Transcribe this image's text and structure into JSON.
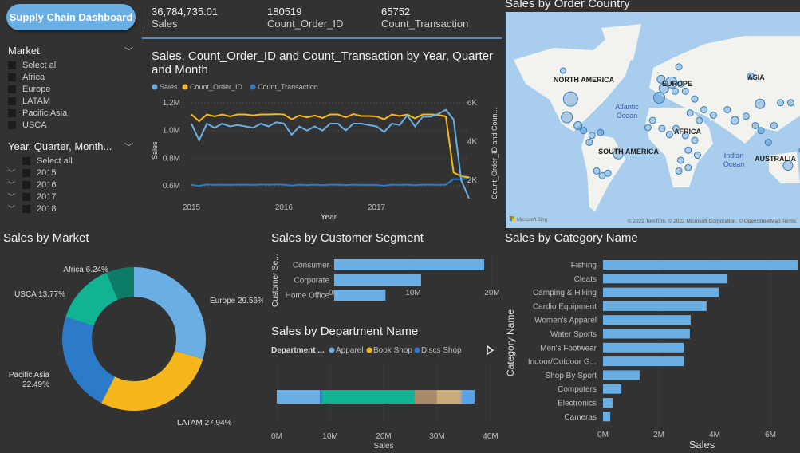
{
  "header": {
    "button": "Supply Chain Dashboard",
    "kpis": [
      {
        "value": "36,784,735.01",
        "label": "Sales"
      },
      {
        "value": "180519",
        "label": "Count_Order_ID"
      },
      {
        "value": "65752",
        "label": "Count_Transaction"
      }
    ]
  },
  "slicers": [
    {
      "title": "Market",
      "items": [
        "Select all",
        "Africa",
        "Europe",
        "LATAM",
        "Pacific Asia",
        "USCA"
      ]
    },
    {
      "title": "Year, Quarter, Month...",
      "items": [
        "Select all",
        "2015",
        "2016",
        "2017",
        "2018"
      ]
    }
  ],
  "colors": {
    "sales": "#6aafe3",
    "order": "#f5b71b",
    "trans": "#2b7bc8",
    "bar": "#6aafe3",
    "bg": "#323232"
  },
  "chart_data": [
    {
      "type": "line",
      "title": "Sales, Count_Order_ID and Count_Transaction by Year, Quarter and Month",
      "xlabel": "Year",
      "ylabel": "Sales",
      "y2label": "Count_Order_ID and Coun...",
      "x_ticks": [
        "2015",
        "2016",
        "2017"
      ],
      "y_ticks": [
        "1.2M",
        "1.0M",
        "0.8M",
        "0.6M"
      ],
      "y2_ticks": [
        "6K",
        "4K",
        "2K"
      ],
      "ylim": [
        0.5,
        1.2
      ],
      "y2lim": [
        1.6,
        6
      ],
      "legend_position": "top-left",
      "grid": true,
      "series": [
        {
          "name": "Sales",
          "axis": "left",
          "unit": "M",
          "values": [
            1.05,
            0.93,
            1.05,
            1.02,
            1.05,
            1.03,
            1.04,
            1.03,
            1.02,
            1.05,
            1.03,
            1.06,
            1.05,
            0.97,
            1.03,
            1.0,
            1.03,
            1.0,
            1.05,
            1.05,
            1.0,
            1.05,
            1.05,
            1.04,
            1.03,
            0.99,
            1.05,
            1.04,
            1.11,
            1.03,
            1.1,
            1.1,
            1.12,
            1.15,
            1.08,
            0.64,
            0.51
          ]
        },
        {
          "name": "Count_Order_ID",
          "axis": "right",
          "unit": "K",
          "values": [
            5.4,
            5.05,
            5.4,
            5.3,
            5.4,
            5.3,
            5.4,
            5.4,
            5.35,
            5.4,
            5.4,
            5.42,
            5.4,
            5.15,
            5.35,
            5.25,
            5.35,
            5.22,
            5.4,
            5.4,
            5.25,
            5.42,
            5.32,
            5.32,
            5.3,
            5.15,
            5.4,
            5.32,
            5.4,
            5.2,
            5.4,
            5.4,
            5.38,
            5.3,
            2.4,
            2.2,
            2.15
          ]
        },
        {
          "name": "Count_Transaction",
          "axis": "right",
          "unit": "K",
          "values": [
            1.76,
            1.7,
            1.78,
            1.76,
            1.77,
            1.76,
            1.77,
            1.77,
            1.76,
            1.78,
            1.77,
            1.78,
            1.77,
            1.72,
            1.77,
            1.75,
            1.77,
            1.74,
            1.77,
            1.77,
            1.75,
            1.77,
            1.76,
            1.76,
            1.76,
            1.71,
            1.77,
            1.76,
            1.77,
            1.74,
            1.77,
            1.77,
            1.76,
            1.77,
            2.05,
            2.05,
            2.1
          ]
        }
      ]
    },
    {
      "type": "pie",
      "title": "Sales by Market",
      "donut": true,
      "slices": [
        {
          "label": "Europe",
          "value": 29.56,
          "text": "Europe 29.56%",
          "color": "#6aafe3"
        },
        {
          "label": "LATAM",
          "value": 27.94,
          "text": "LATAM 27.94%",
          "color": "#f5b71b"
        },
        {
          "label": "Pacific Asia",
          "value": 22.49,
          "text": "Pacific Asia",
          "text2": "22.49%",
          "color": "#2b7bc8"
        },
        {
          "label": "USCA",
          "value": 13.77,
          "text": "USCA 13.77%",
          "color": "#12b393"
        },
        {
          "label": "Africa",
          "value": 6.24,
          "text": "Africa 6.24%",
          "color": "#0e7a68"
        }
      ]
    },
    {
      "type": "bar",
      "orientation": "horizontal",
      "title": "Sales by Customer Segment",
      "ylabel": "Customer Se...",
      "categories": [
        "Consumer",
        "Corporate",
        "Home Office"
      ],
      "values": [
        19.0,
        11.0,
        6.5
      ],
      "unit": "M",
      "xlim": [
        0,
        20
      ],
      "x_ticks": [
        "0M",
        "10M",
        "20M"
      ]
    },
    {
      "type": "bar",
      "orientation": "horizontal",
      "stacked": true,
      "title": "Sales by Department Name",
      "xlabel": "Sales",
      "legend_title": "Department ...",
      "legend": [
        {
          "name": "Apparel",
          "color": "#6aafe3"
        },
        {
          "name": "Book Shop",
          "color": "#f5b71b"
        },
        {
          "name": "Discs Shop",
          "color": "#2b7bc8"
        }
      ],
      "segments": [
        {
          "value": 8.1,
          "color": "#6aafe3"
        },
        {
          "value": 0.3,
          "color": "#2b7bc8"
        },
        {
          "value": 17.3,
          "color": "#12b393"
        },
        {
          "value": 4.2,
          "color": "#a88a68"
        },
        {
          "value": 4.5,
          "color": "#c9ac7a"
        },
        {
          "value": 0.5,
          "color": "#7aa8d8"
        },
        {
          "value": 2.1,
          "color": "#5aa2e8"
        }
      ],
      "xlim": [
        0,
        40
      ],
      "x_ticks": [
        "0M",
        "10M",
        "20M",
        "30M",
        "40M"
      ]
    },
    {
      "type": "bar",
      "orientation": "horizontal",
      "title": "Sales by Category Name",
      "xlabel": "Sales",
      "ylabel": "Category Name",
      "categories": [
        "Fishing",
        "Cleats",
        "Camping & Hiking",
        "Cardio Equipment",
        "Women's Apparel",
        "Water Sports",
        "Men's Footwear",
        "Indoor/Outdoor G...",
        "Shop By Sport",
        "Computers",
        "Electronics",
        "Cameras"
      ],
      "values": [
        6.97,
        4.46,
        4.14,
        3.71,
        3.14,
        3.11,
        2.89,
        2.89,
        1.31,
        0.66,
        0.34,
        0.26
      ],
      "unit": "M",
      "xlim": [
        0,
        7
      ],
      "x_ticks": [
        "0M",
        "2M",
        "4M",
        "6M"
      ]
    }
  ],
  "map": {
    "title": "Sales by Order Country",
    "labels": [
      "NORTH AMERICA",
      "EUROPE",
      "ASIA",
      "Atlantic",
      "Ocean",
      "AFRICA",
      "SOUTH AMERICA",
      "Indian",
      "Ocean",
      "AUSTRALIA"
    ],
    "attribution": "© 2022 TomTom, © 2022 Microsoft Corporation, © OpenStreetMap  Terms",
    "logo": "Microsoft Bing",
    "bubbles": [
      [
        -98,
        39,
        8
      ],
      [
        -102,
        23,
        6
      ],
      [
        -90,
        15,
        4
      ],
      [
        -84,
        10,
        3
      ],
      [
        -75,
        5,
        3
      ],
      [
        -66,
        8,
        3
      ],
      [
        -78,
        -2,
        3
      ],
      [
        -47,
        -14,
        5
      ],
      [
        -70,
        -30,
        3
      ],
      [
        -64,
        -34,
        3
      ],
      [
        -58,
        -32,
        3
      ],
      [
        -106,
        58,
        2.5
      ],
      [
        -3,
        40,
        6
      ],
      [
        2,
        47,
        5
      ],
      [
        10,
        51,
        6
      ],
      [
        -1,
        53,
        4
      ],
      [
        14,
        45,
        3
      ],
      [
        20,
        50,
        3
      ],
      [
        25,
        45,
        3
      ],
      [
        18,
        60,
        3
      ],
      [
        35,
        39,
        3
      ],
      [
        45,
        30,
        3
      ],
      [
        40,
        20,
        3
      ],
      [
        55,
        25,
        3
      ],
      [
        30,
        27,
        3
      ],
      [
        -10,
        20,
        3
      ],
      [
        -15,
        13,
        3
      ],
      [
        0,
        12,
        3
      ],
      [
        15,
        12,
        3
      ],
      [
        8,
        6,
        3
      ],
      [
        25,
        5,
        3
      ],
      [
        35,
        0,
        3
      ],
      [
        28,
        -10,
        3
      ],
      [
        20,
        -20,
        3
      ],
      [
        28,
        -27,
        3
      ],
      [
        18,
        -30,
        3
      ],
      [
        38,
        -15,
        3
      ],
      [
        70,
        30,
        3
      ],
      [
        78,
        20,
        4
      ],
      [
        90,
        24,
        3
      ],
      [
        100,
        15,
        3
      ],
      [
        106,
        10,
        3
      ],
      [
        120,
        15,
        3
      ],
      [
        105,
        35,
        5
      ],
      [
        95,
        55,
        3
      ],
      [
        127,
        36,
        3
      ],
      [
        138,
        36,
        3
      ],
      [
        135,
        -25,
        5
      ],
      [
        114,
        -2,
        3
      ],
      [
        150,
        -10,
        2.5
      ]
    ]
  }
}
